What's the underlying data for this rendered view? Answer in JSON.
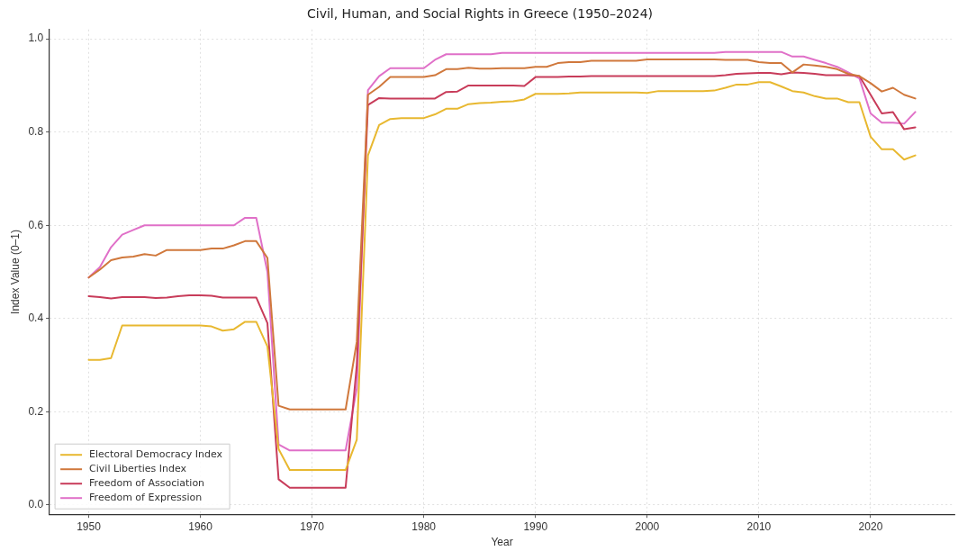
{
  "chart_data": {
    "type": "line",
    "title": "Civil, Human, and Social Rights in Greece (1950–2024)",
    "xlabel": "Year",
    "ylabel": "Index Value (0–1)",
    "x": [
      1950,
      1951,
      1952,
      1953,
      1954,
      1955,
      1956,
      1957,
      1958,
      1959,
      1960,
      1961,
      1962,
      1963,
      1964,
      1965,
      1966,
      1967,
      1968,
      1969,
      1970,
      1971,
      1972,
      1973,
      1974,
      1975,
      1976,
      1977,
      1978,
      1979,
      1980,
      1981,
      1982,
      1983,
      1984,
      1985,
      1986,
      1987,
      1988,
      1989,
      1990,
      1991,
      1992,
      1993,
      1994,
      1995,
      1996,
      1997,
      1998,
      1999,
      2000,
      2001,
      2002,
      2003,
      2004,
      2005,
      2006,
      2007,
      2008,
      2009,
      2010,
      2011,
      2012,
      2013,
      2014,
      2015,
      2016,
      2017,
      2018,
      2019,
      2020,
      2021,
      2022,
      2023,
      2024
    ],
    "series": [
      {
        "name": "Electoral Democracy Index",
        "color": "#e8b830",
        "values": [
          0.311,
          0.311,
          0.315,
          0.385,
          0.385,
          0.385,
          0.385,
          0.385,
          0.385,
          0.385,
          0.385,
          0.383,
          0.374,
          0.377,
          0.393,
          0.393,
          0.34,
          0.12,
          0.075,
          0.075,
          0.075,
          0.075,
          0.075,
          0.075,
          0.14,
          0.75,
          0.815,
          0.828,
          0.83,
          0.83,
          0.83,
          0.838,
          0.85,
          0.85,
          0.86,
          0.862,
          0.863,
          0.865,
          0.866,
          0.87,
          0.882,
          0.882,
          0.882,
          0.883,
          0.885,
          0.885,
          0.885,
          0.885,
          0.885,
          0.885,
          0.884,
          0.888,
          0.888,
          0.888,
          0.888,
          0.888,
          0.889,
          0.895,
          0.902,
          0.902,
          0.907,
          0.907,
          0.898,
          0.888,
          0.885,
          0.877,
          0.872,
          0.872,
          0.864,
          0.864,
          0.79,
          0.763,
          0.763,
          0.741,
          0.75
        ]
      },
      {
        "name": "Civil Liberties Index",
        "color": "#d0783c",
        "values": [
          0.488,
          0.505,
          0.525,
          0.531,
          0.533,
          0.538,
          0.535,
          0.547,
          0.547,
          0.547,
          0.547,
          0.55,
          0.55,
          0.557,
          0.566,
          0.566,
          0.53,
          0.213,
          0.205,
          0.205,
          0.205,
          0.205,
          0.205,
          0.205,
          0.35,
          0.88,
          0.897,
          0.918,
          0.918,
          0.918,
          0.918,
          0.922,
          0.935,
          0.935,
          0.938,
          0.936,
          0.936,
          0.937,
          0.937,
          0.937,
          0.94,
          0.94,
          0.948,
          0.95,
          0.95,
          0.953,
          0.953,
          0.953,
          0.953,
          0.953,
          0.956,
          0.956,
          0.956,
          0.956,
          0.956,
          0.956,
          0.956,
          0.955,
          0.955,
          0.955,
          0.95,
          0.948,
          0.948,
          0.928,
          0.945,
          0.943,
          0.94,
          0.935,
          0.925,
          0.92,
          0.905,
          0.887,
          0.895,
          0.88,
          0.872
        ]
      },
      {
        "name": "Freedom of Association",
        "color": "#c83c5a",
        "values": [
          0.448,
          0.446,
          0.443,
          0.446,
          0.446,
          0.446,
          0.444,
          0.445,
          0.448,
          0.45,
          0.45,
          0.449,
          0.445,
          0.445,
          0.445,
          0.445,
          0.39,
          0.055,
          0.037,
          0.037,
          0.037,
          0.037,
          0.037,
          0.037,
          0.3,
          0.858,
          0.873,
          0.872,
          0.872,
          0.872,
          0.872,
          0.872,
          0.886,
          0.887,
          0.9,
          0.9,
          0.9,
          0.9,
          0.9,
          0.899,
          0.918,
          0.918,
          0.918,
          0.919,
          0.919,
          0.92,
          0.92,
          0.92,
          0.92,
          0.92,
          0.92,
          0.92,
          0.92,
          0.92,
          0.92,
          0.92,
          0.92,
          0.922,
          0.925,
          0.926,
          0.927,
          0.927,
          0.924,
          0.928,
          0.927,
          0.925,
          0.922,
          0.922,
          0.922,
          0.92,
          0.88,
          0.84,
          0.843,
          0.806,
          0.81
        ]
      },
      {
        "name": "Freedom of Expression",
        "color": "#e070c8",
        "values": [
          0.488,
          0.51,
          0.553,
          0.58,
          0.59,
          0.6,
          0.6,
          0.6,
          0.6,
          0.6,
          0.6,
          0.6,
          0.6,
          0.6,
          0.616,
          0.616,
          0.5,
          0.13,
          0.117,
          0.117,
          0.117,
          0.117,
          0.117,
          0.117,
          0.25,
          0.89,
          0.92,
          0.937,
          0.937,
          0.937,
          0.937,
          0.955,
          0.967,
          0.967,
          0.967,
          0.967,
          0.967,
          0.97,
          0.97,
          0.97,
          0.97,
          0.97,
          0.97,
          0.97,
          0.97,
          0.97,
          0.97,
          0.97,
          0.97,
          0.97,
          0.97,
          0.97,
          0.97,
          0.97,
          0.97,
          0.97,
          0.97,
          0.972,
          0.972,
          0.972,
          0.972,
          0.972,
          0.972,
          0.962,
          0.962,
          0.955,
          0.948,
          0.94,
          0.928,
          0.915,
          0.84,
          0.82,
          0.82,
          0.818,
          0.843
        ]
      }
    ],
    "xlim": [
      1946.5,
      2027.5
    ],
    "xticks": [
      1950,
      1960,
      1970,
      1980,
      1990,
      2000,
      2010,
      2020
    ],
    "ylim": [
      -0.02,
      1.02
    ],
    "yticks": [
      {
        "value": 0,
        "label": "0.0"
      },
      {
        "value": 0.2,
        "label": "0.2"
      },
      {
        "value": 0.4,
        "label": "0.4"
      },
      {
        "value": 0.6,
        "label": "0.6"
      },
      {
        "value": 0.8,
        "label": "0.8"
      },
      {
        "value": 1,
        "label": "1.0"
      }
    ],
    "grid": true,
    "legend": "bottom left",
    "marker": "none",
    "line_style": "solid"
  }
}
